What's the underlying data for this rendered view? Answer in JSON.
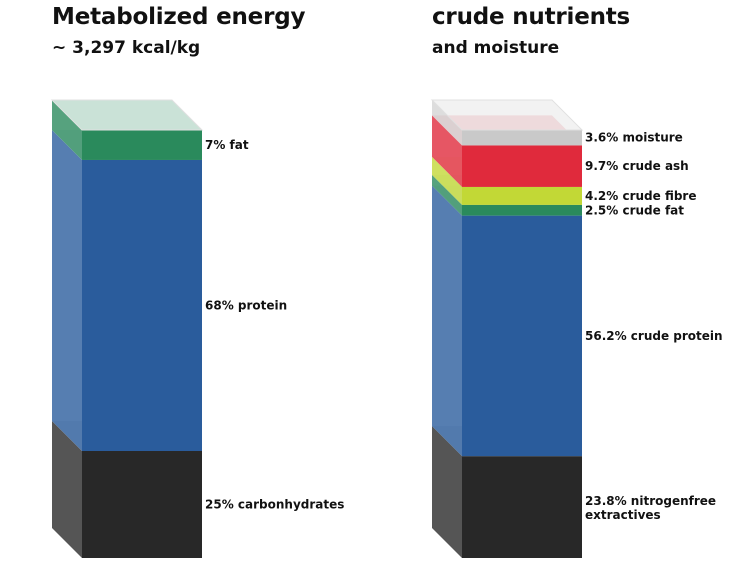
{
  "chart_data": [
    {
      "type": "bar",
      "style": "3d-stacked-column",
      "title": "Metabolized energy",
      "subtitle": "~ 3,297 kcal/kg",
      "stack_order": "bottom-to-top",
      "segments": [
        {
          "name": "carbonhydrates",
          "value": 25,
          "label": "25% carbonhydrates",
          "color": "#282828"
        },
        {
          "name": "protein",
          "value": 68,
          "label": "68% protein",
          "color": "#2a5c9c"
        },
        {
          "name": "fat",
          "value": 7,
          "label": "7% fat",
          "color": "#2a8a5c"
        }
      ]
    },
    {
      "type": "bar",
      "style": "3d-stacked-column",
      "title": "crude nutrients",
      "subtitle": "and moisture",
      "stack_order": "bottom-to-top",
      "segments": [
        {
          "name": "nitrogenfree extractives",
          "value": 23.8,
          "label": "23.8% nitrogenfree extractives",
          "color": "#282828"
        },
        {
          "name": "crude protein",
          "value": 56.2,
          "label": "56.2% crude protein",
          "color": "#2a5c9c"
        },
        {
          "name": "crude fat",
          "value": 2.5,
          "label": "2.5% crude fat",
          "color": "#2a8a5c"
        },
        {
          "name": "crude fibre",
          "value": 4.2,
          "label": "4.2% crude fibre",
          "color": "#c2d836"
        },
        {
          "name": "crude ash",
          "value": 9.7,
          "label": "9.7% crude ash",
          "color": "#e02a3c"
        },
        {
          "name": "moisture",
          "value": 3.6,
          "label": "3.6% moisture",
          "color": "#c9c9c9"
        }
      ]
    }
  ]
}
